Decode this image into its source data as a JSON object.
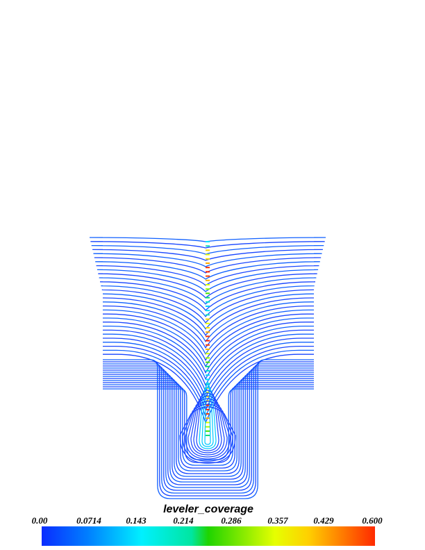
{
  "chart_data": {
    "type": "contour",
    "title": "leveler_coverage",
    "colorbar": {
      "label": "leveler_coverage",
      "min": 0.0,
      "max": 0.6,
      "tick_labels": [
        "0.00",
        "0.0714",
        "0.143",
        "0.214",
        "0.286",
        "0.357",
        "0.429",
        "0.600"
      ],
      "colors": [
        "#0a2cff",
        "#0080ff",
        "#00f0ff",
        "#00e6a0",
        "#1fd400",
        "#e6ff00",
        "#ffd000",
        "#ff2a00"
      ]
    },
    "contours": {
      "count": 45,
      "description_values": {
        "surface": 0.0,
        "centerline_peak": 0.6
      }
    }
  }
}
